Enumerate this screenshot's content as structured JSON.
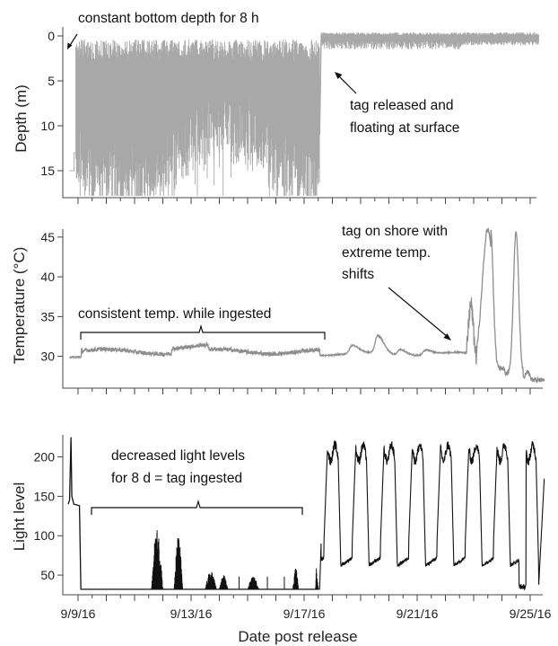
{
  "figure": {
    "xlabel": "Date post release",
    "x_ticks": [
      {
        "day": 0,
        "label": "9/9/16"
      },
      {
        "day": 4,
        "label": "9/13/16"
      },
      {
        "day": 8,
        "label": "9/17/16"
      },
      {
        "day": 12,
        "label": "9/21/16"
      },
      {
        "day": 16,
        "label": "9/25/16"
      }
    ]
  },
  "chart_data": [
    {
      "type": "line",
      "ylabel": "Depth (m)",
      "y_inverted": true,
      "ylim": [
        18,
        -1
      ],
      "y_ticks": [
        0,
        5,
        10,
        15
      ],
      "series": [
        {
          "color": "#a8a8a8",
          "x": [
            -0.3,
            -0.1,
            0.15,
            0.2,
            4,
            8,
            8.5,
            8.6,
            16.3
          ],
          "y": [
            15,
            13,
            0.5,
            2,
            8,
            7,
            11,
            0.5,
            0.5
          ]
        }
      ],
      "annotations": [
        {
          "id": "bottom",
          "text": [
            "constant bottom depth for 8 h"
          ]
        },
        {
          "id": "released",
          "text": [
            "tag released and",
            "floating at surface"
          ]
        }
      ]
    },
    {
      "type": "line",
      "ylabel": "Temperature (°C)",
      "ylim": [
        26,
        46
      ],
      "y_ticks": [
        30,
        35,
        40,
        45
      ],
      "series": [
        {
          "color": "#8e8e8e",
          "x": [
            -0.3,
            0.1,
            4,
            8.5,
            10,
            13.8,
            14.5,
            15.2,
            16.5
          ],
          "y": [
            29.8,
            30.7,
            31.2,
            30.3,
            32.6,
            30.4,
            46,
            46,
            27
          ]
        }
      ],
      "annotations": [
        {
          "id": "ingested",
          "text": [
            "consistent temp. while ingested"
          ]
        },
        {
          "id": "shore",
          "text": [
            "tag on shore with",
            "extreme temp.",
            "shifts"
          ]
        }
      ]
    },
    {
      "type": "line",
      "ylabel": "Light level",
      "ylim": [
        25,
        228
      ],
      "y_ticks": [
        50,
        100,
        150,
        200
      ],
      "series": [
        {
          "color": "#111111",
          "x": [
            -0.35,
            -0.2,
            0.1,
            2.7,
            3.4,
            8.5,
            16.5
          ],
          "y": [
            140,
            225,
            32,
            110,
            100,
            32,
            178
          ]
        }
      ],
      "annotations": [
        {
          "id": "light",
          "text": [
            "decreased light levels",
            "for 8 d = tag ingested"
          ]
        }
      ]
    }
  ]
}
